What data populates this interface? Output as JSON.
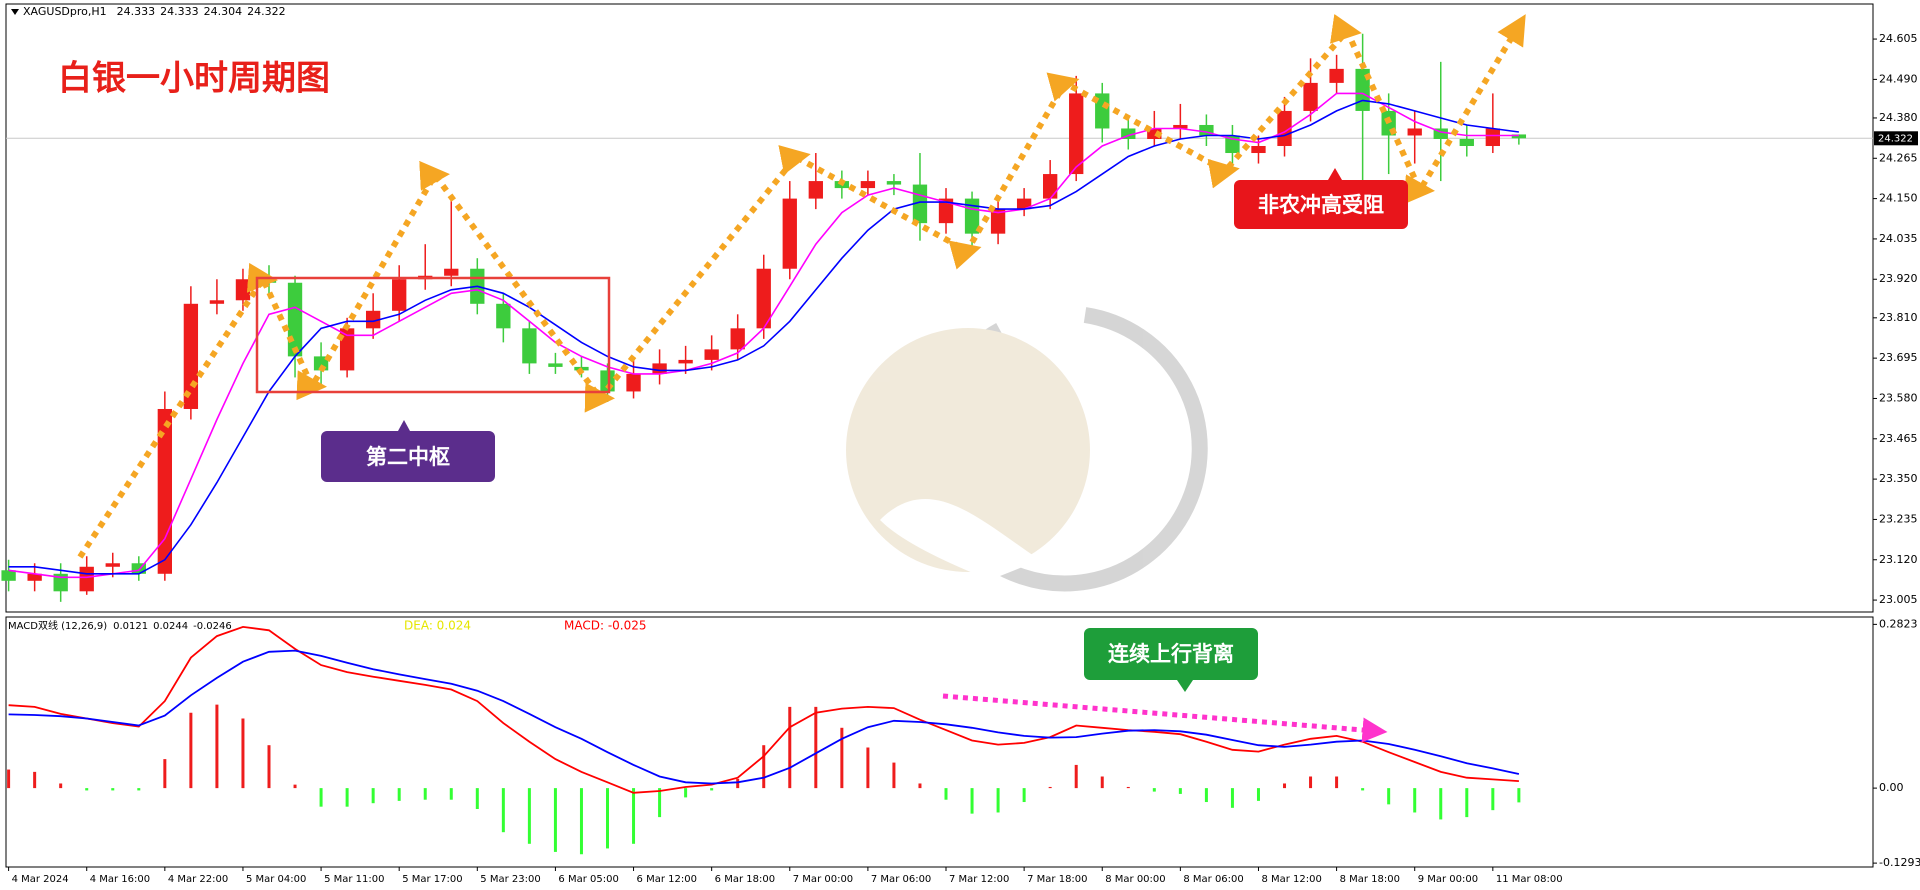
{
  "chart_data": [
    {
      "type": "candlestick",
      "title": "XAGUSDpro,H1",
      "annotations": [
        "白银一小时周期图",
        "第二中枢",
        "非农冲高受阻"
      ],
      "up_color": "#ee1c1c",
      "down_color": "#3dcc3d",
      "xlim": [
        -0.1,
        71.6
      ],
      "ylim": [
        22.971,
        24.705
      ],
      "yticks": [
        24.605,
        {
          "value": 24.49,
          "label": "24.490"
        },
        {
          "value": 24.38,
          "label": "24.380"
        },
        24.265,
        {
          "value": 24.15,
          "label": "24.150"
        },
        24.035,
        {
          "value": 23.92,
          "label": "23.920"
        },
        {
          "value": 23.81,
          "label": "23.810"
        },
        23.695,
        {
          "value": 23.58,
          "label": "23.580"
        },
        23.465,
        {
          "value": 23.35,
          "label": "23.350"
        },
        23.235,
        {
          "value": 23.12,
          "label": "23.120"
        },
        23.005
      ],
      "open": [
        23.09,
        23.06,
        23.08,
        23.03,
        23.1,
        23.11,
        23.08,
        23.55,
        23.85,
        23.86,
        23.92,
        23.91,
        23.7,
        23.66,
        23.78,
        23.83,
        23.92,
        23.93,
        23.95,
        23.85,
        23.78,
        23.68,
        23.67,
        23.66,
        23.6,
        23.65,
        23.68,
        23.69,
        23.72,
        23.78,
        23.95,
        24.15,
        24.2,
        24.18,
        24.2,
        24.19,
        24.08,
        24.15,
        24.05,
        24.12,
        24.15,
        24.22,
        24.45,
        24.35,
        24.32,
        24.35,
        24.36,
        24.33,
        24.28,
        24.3,
        24.4,
        24.48,
        24.52,
        24.4,
        24.33,
        24.35,
        24.32,
        24.3,
        24.333
      ],
      "high": [
        23.12,
        23.11,
        23.11,
        23.13,
        23.14,
        23.13,
        23.6,
        23.9,
        23.92,
        23.95,
        23.96,
        23.93,
        23.74,
        23.81,
        23.88,
        23.96,
        24.02,
        24.15,
        23.98,
        23.88,
        23.8,
        23.71,
        23.7,
        23.68,
        23.69,
        23.72,
        23.73,
        23.76,
        23.82,
        23.99,
        24.2,
        24.28,
        24.23,
        24.23,
        24.22,
        24.28,
        24.18,
        24.17,
        24.16,
        24.18,
        24.26,
        24.5,
        24.48,
        24.38,
        24.4,
        24.42,
        24.39,
        24.36,
        24.33,
        24.44,
        24.55,
        24.56,
        24.62,
        24.45,
        24.4,
        24.54,
        24.36,
        24.45,
        24.333
      ],
      "low": [
        23.03,
        23.03,
        23.0,
        23.02,
        23.07,
        23.06,
        23.06,
        23.52,
        23.82,
        23.83,
        23.87,
        23.64,
        23.62,
        23.64,
        23.75,
        23.8,
        23.89,
        23.9,
        23.82,
        23.74,
        23.65,
        23.65,
        23.64,
        23.57,
        23.58,
        23.62,
        23.65,
        23.66,
        23.69,
        23.75,
        23.92,
        24.12,
        24.15,
        24.16,
        24.16,
        24.03,
        24.05,
        24.0,
        24.02,
        24.1,
        24.12,
        24.2,
        24.31,
        24.29,
        24.3,
        24.32,
        24.3,
        24.23,
        24.25,
        24.27,
        24.37,
        24.45,
        24.2,
        24.22,
        24.25,
        24.2,
        24.27,
        24.28,
        24.304
      ],
      "close": [
        23.06,
        23.08,
        23.03,
        23.1,
        23.11,
        23.08,
        23.55,
        23.85,
        23.86,
        23.92,
        23.91,
        23.7,
        23.66,
        23.78,
        23.83,
        23.92,
        23.93,
        23.95,
        23.85,
        23.78,
        23.68,
        23.67,
        23.66,
        23.6,
        23.65,
        23.68,
        23.69,
        23.72,
        23.78,
        23.95,
        24.15,
        24.2,
        24.18,
        24.2,
        24.19,
        24.08,
        24.15,
        24.05,
        24.12,
        24.15,
        24.22,
        24.45,
        24.35,
        24.32,
        24.35,
        24.36,
        24.33,
        24.28,
        24.3,
        24.4,
        24.48,
        24.52,
        24.4,
        24.33,
        24.35,
        24.32,
        24.3,
        24.35,
        24.322
      ],
      "lines": [
        {
          "color": "#ff00ff",
          "values": [
            23.09,
            23.08,
            23.07,
            23.07,
            23.08,
            23.09,
            23.18,
            23.35,
            23.52,
            23.68,
            23.82,
            23.84,
            23.8,
            23.76,
            23.76,
            23.8,
            23.84,
            23.88,
            23.89,
            23.86,
            23.8,
            23.74,
            23.7,
            23.67,
            23.65,
            23.65,
            23.66,
            23.68,
            23.71,
            23.78,
            23.9,
            24.02,
            24.11,
            24.16,
            24.18,
            24.16,
            24.14,
            24.12,
            24.11,
            24.12,
            24.15,
            24.24,
            24.3,
            24.33,
            24.35,
            24.35,
            24.34,
            24.32,
            24.31,
            24.34,
            24.39,
            24.45,
            24.45,
            24.41,
            24.37,
            24.34,
            24.33,
            24.33,
            24.33
          ]
        },
        {
          "color": "#0000ff",
          "values": [
            23.1,
            23.1,
            23.09,
            23.08,
            23.08,
            23.08,
            23.12,
            23.22,
            23.34,
            23.47,
            23.6,
            23.7,
            23.78,
            23.8,
            23.8,
            23.82,
            23.86,
            23.89,
            23.9,
            23.88,
            23.84,
            23.79,
            23.74,
            23.7,
            23.67,
            23.66,
            23.66,
            23.67,
            23.69,
            23.73,
            23.8,
            23.89,
            23.98,
            24.06,
            24.12,
            24.14,
            24.14,
            24.13,
            24.12,
            24.12,
            24.13,
            24.17,
            24.22,
            24.27,
            24.3,
            24.32,
            24.33,
            24.33,
            24.32,
            24.33,
            24.36,
            24.4,
            24.43,
            24.42,
            24.4,
            24.38,
            24.36,
            24.35,
            24.34
          ]
        }
      ]
    },
    {
      "type": "macd",
      "title": "MACD双线 (12,26,9)",
      "annotations": [
        "连续上行背离",
        "DEA: 0.024",
        "MACD: -0.025"
      ],
      "xlim": [
        -0.1,
        71.6
      ],
      "ylim": [
        -0.136,
        0.295
      ],
      "yticks": [
        0.2823,
        {
          "value": 0,
          "label": "0.00"
        },
        -0.1293
      ],
      "xticks": [
        {
          "value": 0,
          "label": "4 Mar 2024"
        },
        {
          "value": 3,
          "label": "4 Mar 16:00"
        },
        {
          "value": 6,
          "label": "4 Mar 22:00"
        },
        {
          "value": 9,
          "label": "5 Mar 04:00"
        },
        {
          "value": 12,
          "label": "5 Mar 11:00"
        },
        {
          "value": 15,
          "label": "5 Mar 17:00"
        },
        {
          "value": 18,
          "label": "5 Mar 23:00"
        },
        {
          "value": 21,
          "label": "6 Mar 05:00"
        },
        {
          "value": 24,
          "label": "6 Mar 12:00"
        },
        {
          "value": 27,
          "label": "6 Mar 18:00"
        },
        {
          "value": 30,
          "label": "7 Mar 00:00"
        },
        {
          "value": 33,
          "label": "7 Mar 06:00"
        },
        {
          "value": 36,
          "label": "7 Mar 12:00"
        },
        {
          "value": 39,
          "label": "7 Mar 18:00"
        },
        {
          "value": 42,
          "label": "8 Mar 00:00"
        },
        {
          "value": 45,
          "label": "8 Mar 06:00"
        },
        {
          "value": 48,
          "label": "8 Mar 12:00"
        },
        {
          "value": 51,
          "label": "8 Mar 18:00"
        },
        {
          "value": 54,
          "label": "9 Mar 00:00"
        },
        {
          "value": 57,
          "label": "11 Mar 08:00"
        }
      ],
      "hist_up_color": "#ee1c1c",
      "hist_down_color": "#33ff33",
      "histogram": [
        0.032,
        0.028,
        0.008,
        -0.004,
        -0.004,
        -0.004,
        0.05,
        0.13,
        0.144,
        0.12,
        0.074,
        0.006,
        -0.032,
        -0.032,
        -0.026,
        -0.022,
        -0.02,
        -0.02,
        -0.036,
        -0.076,
        -0.096,
        -0.11,
        -0.114,
        -0.104,
        -0.096,
        -0.05,
        -0.016,
        -0.004,
        0.016,
        0.074,
        0.14,
        0.14,
        0.104,
        0.07,
        0.044,
        0.008,
        -0.02,
        -0.044,
        -0.042,
        -0.024,
        0.002,
        0.04,
        0.02,
        0.002,
        -0.006,
        -0.01,
        -0.024,
        -0.034,
        -0.022,
        0.008,
        0.02,
        0.02,
        -0.004,
        -0.028,
        -0.042,
        -0.054,
        -0.05,
        -0.038,
        -0.0246
      ],
      "series": [
        {
          "color": "#ff0000",
          "values": [
            0.143,
            0.14,
            0.128,
            0.12,
            0.112,
            0.106,
            0.15,
            0.225,
            0.262,
            0.278,
            0.272,
            0.24,
            0.212,
            0.2,
            0.192,
            0.185,
            0.178,
            0.17,
            0.15,
            0.112,
            0.08,
            0.05,
            0.028,
            0.01,
            -0.008,
            -0.005,
            0.002,
            0.006,
            0.018,
            0.055,
            0.105,
            0.13,
            0.137,
            0.14,
            0.138,
            0.118,
            0.1,
            0.082,
            0.075,
            0.078,
            0.088,
            0.108,
            0.104,
            0.1,
            0.097,
            0.093,
            0.08,
            0.066,
            0.063,
            0.075,
            0.085,
            0.09,
            0.08,
            0.062,
            0.045,
            0.028,
            0.018,
            0.015,
            0.0121
          ]
        },
        {
          "color": "#0000ff",
          "values": [
            0.127,
            0.126,
            0.124,
            0.12,
            0.114,
            0.108,
            0.125,
            0.16,
            0.19,
            0.218,
            0.235,
            0.237,
            0.228,
            0.216,
            0.205,
            0.196,
            0.188,
            0.18,
            0.168,
            0.15,
            0.128,
            0.105,
            0.085,
            0.062,
            0.04,
            0.02,
            0.01,
            0.008,
            0.01,
            0.018,
            0.035,
            0.06,
            0.085,
            0.105,
            0.116,
            0.114,
            0.11,
            0.104,
            0.096,
            0.09,
            0.087,
            0.088,
            0.094,
            0.099,
            0.1,
            0.098,
            0.092,
            0.083,
            0.074,
            0.071,
            0.075,
            0.08,
            0.082,
            0.076,
            0.066,
            0.055,
            0.043,
            0.034,
            0.0244
          ]
        }
      ]
    }
  ]
}
